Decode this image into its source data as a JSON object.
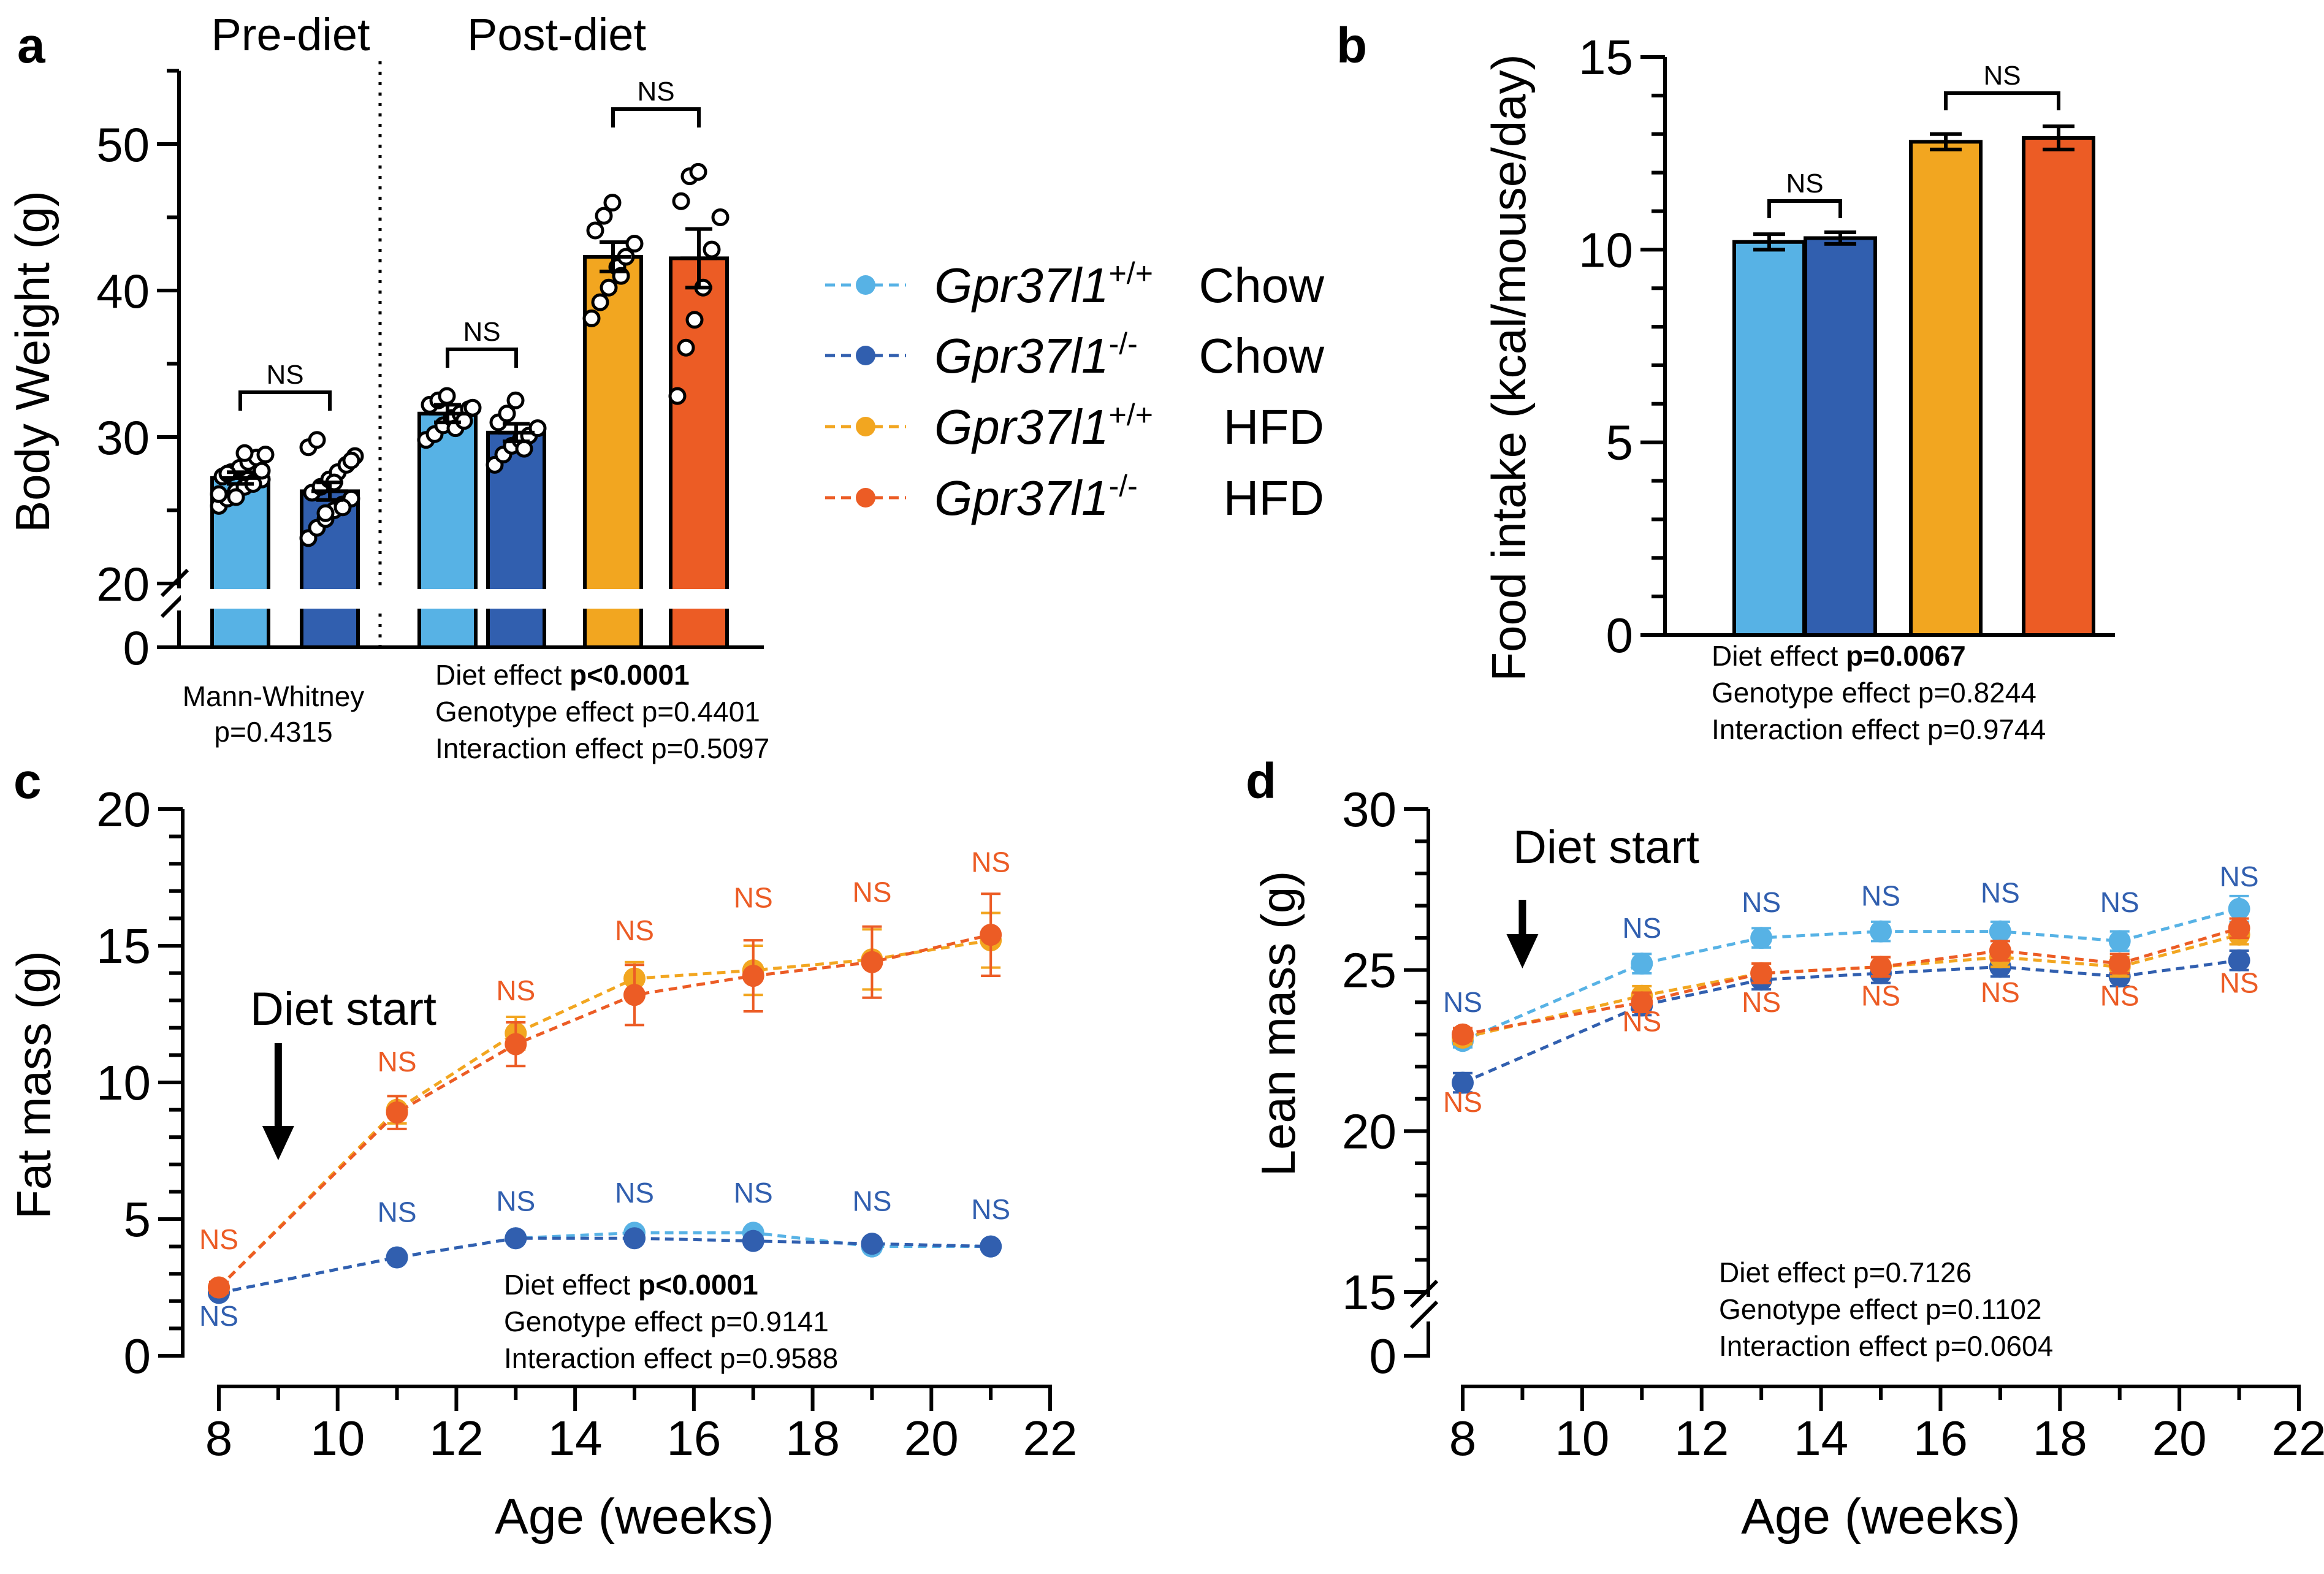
{
  "colors": {
    "wt_chow": "#57b2e5",
    "ko_chow": "#315faf",
    "wt_hfd": "#f2a620",
    "ko_hfd": "#ec5c25",
    "axis": "#000000",
    "point_fill": "#ffffff"
  },
  "legend": {
    "items": [
      {
        "gene": "Gpr37l1",
        "sup": "+/+",
        "diet": "Chow",
        "color_key": "wt_chow"
      },
      {
        "gene": "Gpr37l1",
        "sup": "-/-",
        "diet": "Chow",
        "color_key": "ko_chow"
      },
      {
        "gene": "Gpr37l1",
        "sup": "+/+",
        "diet": "HFD",
        "color_key": "wt_hfd"
      },
      {
        "gene": "Gpr37l1",
        "sup": "-/-",
        "diet": "HFD",
        "color_key": "ko_hfd"
      }
    ]
  },
  "chart_data": [
    {
      "id": "a",
      "panel_label": "a",
      "type": "bar",
      "ylabel": "Body Weight  (g)",
      "axis_break": {
        "lower": 0,
        "upper": 20
      },
      "ylim": [
        20,
        55
      ],
      "yticks": [
        20,
        30,
        40,
        50
      ],
      "ytick_labels": [
        "20",
        "30",
        "40",
        "50"
      ],
      "zero_label": "0",
      "section_labels": [
        "Pre-diet",
        "Post-diet"
      ],
      "categories": [
        "Gpr37l1+/+ Chow (pre)",
        "Gpr37l1-/- Chow (pre)",
        "Gpr37l1+/+ Chow",
        "Gpr37l1-/- Chow",
        "Gpr37l1+/+ HFD",
        "Gpr37l1-/- HFD"
      ],
      "color_keys": [
        "wt_chow",
        "ko_chow",
        "wt_chow",
        "ko_chow",
        "wt_hfd",
        "ko_hfd"
      ],
      "values": [
        27.2,
        26.3,
        31.6,
        30.3,
        42.3,
        42.2
      ],
      "errors": [
        0.4,
        0.6,
        0.6,
        0.6,
        1.0,
        2.0
      ],
      "points": [
        [
          25.3,
          25.8,
          26.3,
          26.6,
          26.9,
          27.1,
          27.3,
          27.6,
          27.9,
          28.3,
          28.6,
          28.8,
          26.1,
          27.5,
          25.9,
          28.9,
          26.8,
          27.7
        ],
        [
          23.1,
          23.8,
          24.4,
          25.0,
          25.4,
          25.8,
          26.2,
          26.6,
          27.1,
          27.6,
          28.1,
          28.7,
          29.3,
          29.8,
          24.8,
          26.9,
          25.2,
          28.4
        ],
        [
          29.8,
          30.2,
          30.8,
          31.3,
          31.6,
          31.9,
          32.2,
          32.5,
          32.8,
          30.6,
          31.1,
          32.0
        ],
        [
          28.1,
          28.8,
          29.4,
          29.8,
          30.1,
          30.6,
          31.0,
          31.6,
          32.5,
          29.2
        ],
        [
          38.1,
          39.2,
          40.2,
          41.6,
          42.3,
          43.2,
          44.1,
          45.1,
          46.0,
          41.0
        ],
        [
          32.8,
          36.1,
          38.0,
          40.2,
          42.8,
          45.0,
          46.1,
          47.8,
          48.1
        ]
      ],
      "comparisons": [
        {
          "from": 0,
          "to": 1,
          "label": "NS"
        },
        {
          "from": 2,
          "to": 3,
          "label": "NS"
        },
        {
          "from": 4,
          "to": 5,
          "label": "NS"
        }
      ],
      "stats_left": [
        "Mann-Whitney",
        "p=0.4315"
      ],
      "stats": [
        {
          "label": "Diet effect",
          "value": "p<0.0001",
          "bold": true
        },
        {
          "label": "Genotype effect",
          "value": "p=0.4401",
          "bold": false
        },
        {
          "label": "Interaction effect",
          "value": "p=0.5097",
          "bold": false
        }
      ]
    },
    {
      "id": "b",
      "panel_label": "b",
      "type": "bar",
      "ylabel": "Food intake (kcal/mouse/day)",
      "ylim": [
        0,
        15
      ],
      "yticks": [
        0,
        5,
        10,
        15
      ],
      "ytick_labels": [
        "0",
        "5",
        "10",
        "15"
      ],
      "categories": [
        "Gpr37l1+/+ Chow",
        "Gpr37l1-/- Chow",
        "Gpr37l1+/+ HFD",
        "Gpr37l1-/- HFD"
      ],
      "color_keys": [
        "wt_chow",
        "ko_chow",
        "wt_hfd",
        "ko_hfd"
      ],
      "values": [
        10.2,
        10.3,
        12.8,
        12.9
      ],
      "errors": [
        0.2,
        0.15,
        0.2,
        0.3
      ],
      "comparisons": [
        {
          "from": 0,
          "to": 1,
          "label": "NS"
        },
        {
          "from": 2,
          "to": 3,
          "label": "NS"
        }
      ],
      "stats": [
        {
          "label": "Diet effect",
          "value": "p=0.0067",
          "bold": true
        },
        {
          "label": "Genotype effect",
          "value": "p=0.8244",
          "bold": false
        },
        {
          "label": "Interaction effect",
          "value": "p=0.9744",
          "bold": false
        }
      ]
    },
    {
      "id": "c",
      "panel_label": "c",
      "type": "line",
      "title": "",
      "xlabel": "Age (weeks)",
      "ylabel": "Fat mass (g)",
      "xlim": [
        8,
        22
      ],
      "ylim": [
        0,
        20
      ],
      "xticks": [
        8,
        10,
        12,
        14,
        16,
        18,
        20,
        22
      ],
      "yticks": [
        0,
        5,
        10,
        15,
        20
      ],
      "x": [
        8,
        11,
        13,
        15,
        17,
        19,
        21
      ],
      "series": [
        {
          "name": "Gpr37l1+/+ Chow",
          "color_key": "wt_chow",
          "values": [
            2.3,
            3.6,
            4.3,
            4.5,
            4.5,
            4.0,
            4.0
          ],
          "errors": [
            0.1,
            0.1,
            0.1,
            0.15,
            0.15,
            0.1,
            0.1
          ]
        },
        {
          "name": "Gpr37l1-/- Chow",
          "color_key": "ko_chow",
          "values": [
            2.3,
            3.6,
            4.3,
            4.3,
            4.2,
            4.1,
            4.0
          ],
          "errors": [
            0.1,
            0.1,
            0.1,
            0.1,
            0.1,
            0.1,
            0.1
          ]
        },
        {
          "name": "Gpr37l1+/+ HFD",
          "color_key": "wt_hfd",
          "values": [
            2.5,
            9.0,
            11.8,
            13.8,
            14.1,
            14.5,
            15.2
          ],
          "errors": [
            0.2,
            0.5,
            0.6,
            0.6,
            0.9,
            1.1,
            1.0
          ]
        },
        {
          "name": "Gpr37l1-/- HFD",
          "color_key": "ko_hfd",
          "values": [
            2.5,
            8.9,
            11.4,
            13.2,
            13.9,
            14.4,
            15.4
          ],
          "errors": [
            0.2,
            0.6,
            0.8,
            1.1,
            1.3,
            1.3,
            1.5
          ]
        }
      ],
      "ns_labels": [
        {
          "x": 8,
          "y": 3.9,
          "text": "NS",
          "color_key": "ko_hfd"
        },
        {
          "x": 8,
          "y": 1.1,
          "text": "NS",
          "color_key": "ko_chow"
        },
        {
          "x": 11,
          "y": 10.4,
          "text": "NS",
          "color_key": "ko_hfd"
        },
        {
          "x": 11,
          "y": 4.9,
          "text": "NS",
          "color_key": "ko_chow"
        },
        {
          "x": 13,
          "y": 13.0,
          "text": "NS",
          "color_key": "ko_hfd"
        },
        {
          "x": 13,
          "y": 5.3,
          "text": "NS",
          "color_key": "ko_chow"
        },
        {
          "x": 15,
          "y": 15.2,
          "text": "NS",
          "color_key": "ko_hfd"
        },
        {
          "x": 15,
          "y": 5.6,
          "text": "NS",
          "color_key": "ko_chow"
        },
        {
          "x": 17,
          "y": 16.4,
          "text": "NS",
          "color_key": "ko_hfd"
        },
        {
          "x": 17,
          "y": 5.6,
          "text": "NS",
          "color_key": "ko_chow"
        },
        {
          "x": 19,
          "y": 16.6,
          "text": "NS",
          "color_key": "ko_hfd"
        },
        {
          "x": 19,
          "y": 5.3,
          "text": "NS",
          "color_key": "ko_chow"
        },
        {
          "x": 21,
          "y": 17.7,
          "text": "NS",
          "color_key": "ko_hfd"
        },
        {
          "x": 21,
          "y": 5.0,
          "text": "NS",
          "color_key": "ko_chow"
        }
      ],
      "annotation": {
        "text": "Diet start",
        "x": 9
      },
      "stats": [
        {
          "label": "Diet effect",
          "value": "p<0.0001",
          "bold": true
        },
        {
          "label": "Genotype effect",
          "value": "p=0.9141",
          "bold": false
        },
        {
          "label": "Interaction effect",
          "value": "p=0.9588",
          "bold": false
        }
      ]
    },
    {
      "id": "d",
      "panel_label": "d",
      "type": "line",
      "title": "",
      "xlabel": "Age (weeks)",
      "ylabel": "Lean mass (g)",
      "axis_break": {
        "lower": 0,
        "upper": 15
      },
      "xlim": [
        8,
        22
      ],
      "ylim": [
        15,
        30
      ],
      "xticks": [
        8,
        10,
        12,
        14,
        16,
        18,
        20,
        22
      ],
      "yticks": [
        15,
        20,
        25,
        30
      ],
      "zero_label": "0",
      "x": [
        8,
        11,
        13,
        15,
        17,
        19,
        21
      ],
      "series": [
        {
          "name": "Gpr37l1+/+ Chow",
          "color_key": "wt_chow",
          "values": [
            22.8,
            25.2,
            26.0,
            26.2,
            26.2,
            25.9,
            26.9
          ],
          "errors": [
            0.2,
            0.3,
            0.3,
            0.3,
            0.3,
            0.3,
            0.4
          ]
        },
        {
          "name": "Gpr37l1-/- Chow",
          "color_key": "ko_chow",
          "values": [
            21.5,
            23.9,
            24.7,
            24.9,
            25.1,
            24.8,
            25.3
          ],
          "errors": [
            0.3,
            0.3,
            0.3,
            0.3,
            0.3,
            0.3,
            0.3
          ]
        },
        {
          "name": "Gpr37l1+/+ HFD",
          "color_key": "wt_hfd",
          "values": [
            22.9,
            24.2,
            24.9,
            25.1,
            25.4,
            25.1,
            26.1
          ],
          "errors": [
            0.2,
            0.3,
            0.3,
            0.3,
            0.3,
            0.3,
            0.3
          ]
        },
        {
          "name": "Gpr37l1-/- HFD",
          "color_key": "ko_hfd",
          "values": [
            23.0,
            24.0,
            24.9,
            25.1,
            25.6,
            25.2,
            26.3
          ],
          "errors": [
            0.2,
            0.3,
            0.3,
            0.3,
            0.3,
            0.3,
            0.3
          ]
        }
      ],
      "ns_labels": [
        {
          "x": 8,
          "y": 23.7,
          "text": "NS",
          "color_key": "ko_chow"
        },
        {
          "x": 8,
          "y": 20.6,
          "text": "NS",
          "color_key": "ko_hfd"
        },
        {
          "x": 11,
          "y": 26.0,
          "text": "NS",
          "color_key": "ko_chow"
        },
        {
          "x": 11,
          "y": 23.1,
          "text": "NS",
          "color_key": "ko_hfd"
        },
        {
          "x": 13,
          "y": 26.8,
          "text": "NS",
          "color_key": "ko_chow"
        },
        {
          "x": 13,
          "y": 23.7,
          "text": "NS",
          "color_key": "ko_hfd"
        },
        {
          "x": 15,
          "y": 27.0,
          "text": "NS",
          "color_key": "ko_chow"
        },
        {
          "x": 15,
          "y": 23.9,
          "text": "NS",
          "color_key": "ko_hfd"
        },
        {
          "x": 17,
          "y": 27.1,
          "text": "NS",
          "color_key": "ko_chow"
        },
        {
          "x": 17,
          "y": 24.0,
          "text": "NS",
          "color_key": "ko_hfd"
        },
        {
          "x": 19,
          "y": 26.8,
          "text": "NS",
          "color_key": "ko_chow"
        },
        {
          "x": 19,
          "y": 23.9,
          "text": "NS",
          "color_key": "ko_hfd"
        },
        {
          "x": 21,
          "y": 27.6,
          "text": "NS",
          "color_key": "ko_chow"
        },
        {
          "x": 21,
          "y": 24.3,
          "text": "NS",
          "color_key": "ko_hfd"
        }
      ],
      "annotation": {
        "text": "Diet start",
        "x": 9
      },
      "stats": [
        {
          "label": "Diet effect",
          "value": "p=0.7126",
          "bold": false
        },
        {
          "label": "Genotype effect",
          "value": "p=0.1102",
          "bold": false
        },
        {
          "label": "Interaction effect",
          "value": "p=0.0604",
          "bold": false
        }
      ]
    }
  ]
}
